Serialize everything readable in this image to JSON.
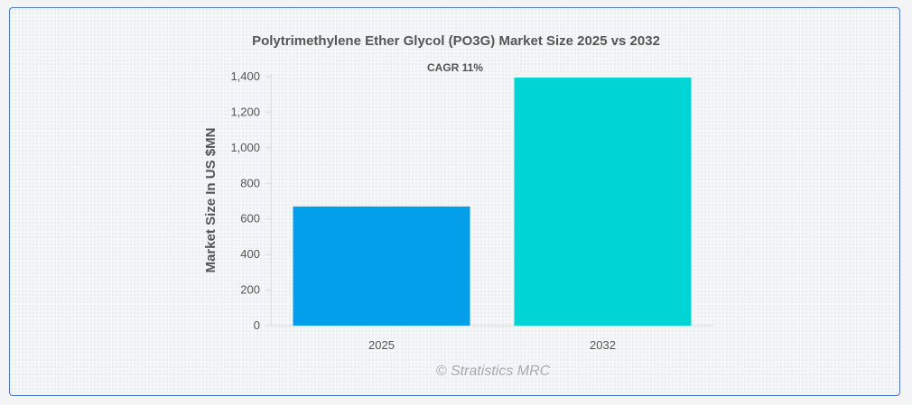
{
  "chart_data": {
    "type": "bar",
    "title": "Polytrimethylene Ether Glycol (PO3G) Market Size 2025 vs 2032",
    "annotation": "CAGR 11%",
    "categories": [
      "2025",
      "2032"
    ],
    "values": [
      670,
      1395
    ],
    "colors": [
      "#039fea",
      "#00d4d4"
    ],
    "xlabel": "",
    "ylabel": "Market Size In US $MN",
    "ylim": [
      0,
      1400
    ],
    "yticks": [
      0,
      200,
      400,
      600,
      800,
      1000,
      1200,
      1400
    ],
    "ytick_labels": [
      "0",
      "200",
      "400",
      "600",
      "800",
      "1,000",
      "1,200",
      "1,400"
    ],
    "grid": false,
    "legend": "none"
  },
  "credit": "© Stratistics MRC"
}
